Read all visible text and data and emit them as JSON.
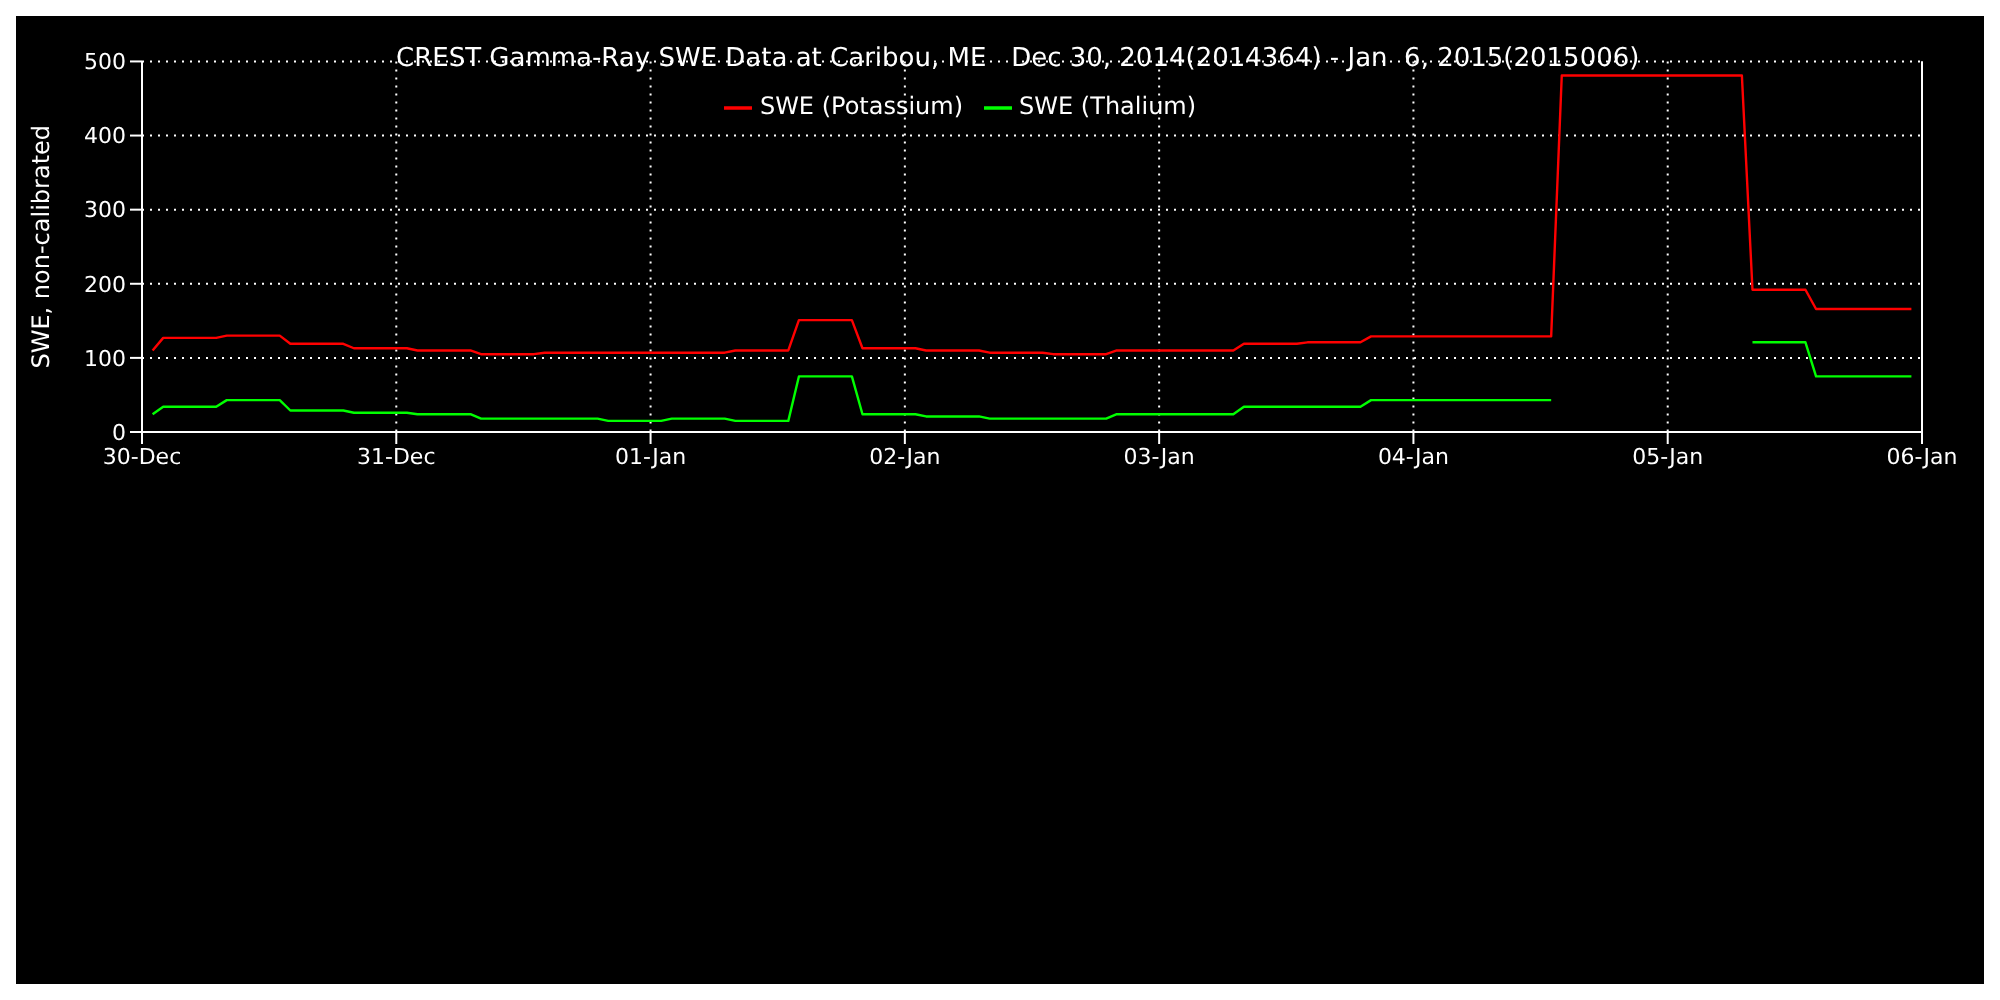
{
  "chart_data": {
    "type": "line",
    "title": "CREST Gamma-Ray SWE Data at Caribou, ME   Dec 30, 2014(2014364) - Jan  6, 2015(2015006)",
    "ylabel": "SWE, non-calibrated",
    "x": [
      "2014-12-30T01:00",
      "2014-12-30T02:00",
      "2014-12-30T07:00",
      "2014-12-30T08:00",
      "2014-12-30T13:00",
      "2014-12-30T14:00",
      "2014-12-30T19:00",
      "2014-12-30T20:00",
      "2014-12-31T01:00",
      "2014-12-31T02:00",
      "2014-12-31T07:00",
      "2014-12-31T08:00",
      "2014-12-31T13:00",
      "2014-12-31T14:00",
      "2014-12-31T19:00",
      "2014-12-31T20:00",
      "2015-01-01T01:00",
      "2015-01-01T02:00",
      "2015-01-01T07:00",
      "2015-01-01T08:00",
      "2015-01-01T13:00",
      "2015-01-01T14:00",
      "2015-01-01T19:00",
      "2015-01-01T20:00",
      "2015-01-02T01:00",
      "2015-01-02T02:00",
      "2015-01-02T07:00",
      "2015-01-02T08:00",
      "2015-01-02T13:00",
      "2015-01-02T14:00",
      "2015-01-02T19:00",
      "2015-01-02T20:00",
      "2015-01-03T07:00",
      "2015-01-03T08:00",
      "2015-01-03T13:00",
      "2015-01-03T14:00",
      "2015-01-03T19:00",
      "2015-01-03T20:00",
      "2015-01-04T13:00",
      "2015-01-04T14:00",
      "2015-01-05T07:00",
      "2015-01-05T08:00",
      "2015-01-05T13:00",
      "2015-01-05T14:00",
      "2015-01-05T23:00"
    ],
    "series": [
      {
        "name": "SWE (Potassium)",
        "color": "#ff0000",
        "values": [
          110,
          127,
          127,
          130,
          130,
          119,
          119,
          113,
          113,
          110,
          110,
          105,
          105,
          107,
          107,
          107,
          107,
          107,
          107,
          110,
          110,
          151,
          151,
          113,
          113,
          110,
          110,
          107,
          107,
          105,
          105,
          110,
          110,
          119,
          119,
          121,
          121,
          129,
          129,
          481,
          481,
          192,
          192,
          166,
          166
        ]
      },
      {
        "name": "SWE (Thalium)",
        "color": "#00ff00",
        "values": [
          24,
          34,
          34,
          43,
          43,
          29,
          29,
          26,
          26,
          24,
          24,
          18,
          18,
          18,
          18,
          15,
          15,
          18,
          18,
          15,
          15,
          75,
          75,
          24,
          24,
          21,
          21,
          18,
          18,
          18,
          18,
          24,
          24,
          34,
          34,
          34,
          34,
          43,
          43,
          null,
          null,
          121,
          121,
          75,
          75
        ]
      }
    ],
    "xlim": [
      "2014-12-30",
      "2015-01-06"
    ],
    "xticks": [
      {
        "value": "2014-12-30",
        "label": "30-Dec"
      },
      {
        "value": "2014-12-31",
        "label": "31-Dec"
      },
      {
        "value": "2015-01-01",
        "label": "01-Jan"
      },
      {
        "value": "2015-01-02",
        "label": "02-Jan"
      },
      {
        "value": "2015-01-03",
        "label": "03-Jan"
      },
      {
        "value": "2015-01-04",
        "label": "04-Jan"
      },
      {
        "value": "2015-01-05",
        "label": "05-Jan"
      },
      {
        "value": "2015-01-06",
        "label": "06-Jan"
      }
    ],
    "ylim": [
      0,
      500
    ],
    "yticks": [
      0,
      100,
      200,
      300,
      400,
      500
    ],
    "grid": true,
    "legend": "top",
    "marker": "none",
    "line_style": "solid"
  }
}
